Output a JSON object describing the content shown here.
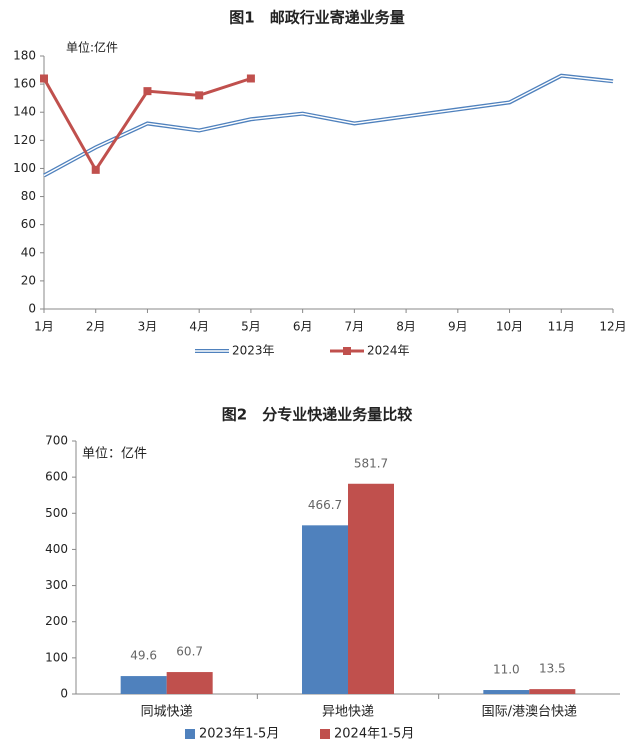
{
  "chart_data": [
    {
      "type": "line",
      "title": "图1　邮政行业寄递业务量",
      "unit_label": "单位:亿件",
      "categories": [
        "1月",
        "2月",
        "3月",
        "4月",
        "5月",
        "6月",
        "7月",
        "8月",
        "9月",
        "10月",
        "11月",
        "12月"
      ],
      "series": [
        {
          "name": "2023年",
          "color": "#4f81bd",
          "values": [
            95,
            115,
            132,
            127,
            135,
            139,
            132,
            137,
            142,
            147,
            166,
            162
          ]
        },
        {
          "name": "2024年",
          "color": "#c0504d",
          "values": [
            164,
            99,
            155,
            152,
            164,
            null,
            null,
            null,
            null,
            null,
            null,
            null
          ]
        }
      ],
      "ylim": [
        0,
        180
      ],
      "yticks": [
        0,
        20,
        40,
        60,
        80,
        100,
        120,
        140,
        160,
        180
      ]
    },
    {
      "type": "bar",
      "title": "图2　分专业快递业务量比较",
      "unit_label": "单位：亿件",
      "categories": [
        "同城快递",
        "异地快递",
        "国际/港澳台快递"
      ],
      "series": [
        {
          "name": "2023年1-5月",
          "color": "#4f81bd",
          "values": [
            49.6,
            466.7,
            11.0
          ],
          "value_labels": [
            "49.6",
            "466.7",
            "11.0"
          ]
        },
        {
          "name": "2024年1-5月",
          "color": "#c0504d",
          "values": [
            60.7,
            581.7,
            13.5
          ],
          "value_labels": [
            "60.7",
            "581.7",
            "13.5"
          ]
        }
      ],
      "ylim": [
        0,
        700
      ],
      "yticks": [
        0,
        100,
        200,
        300,
        400,
        500,
        600,
        700
      ]
    }
  ]
}
